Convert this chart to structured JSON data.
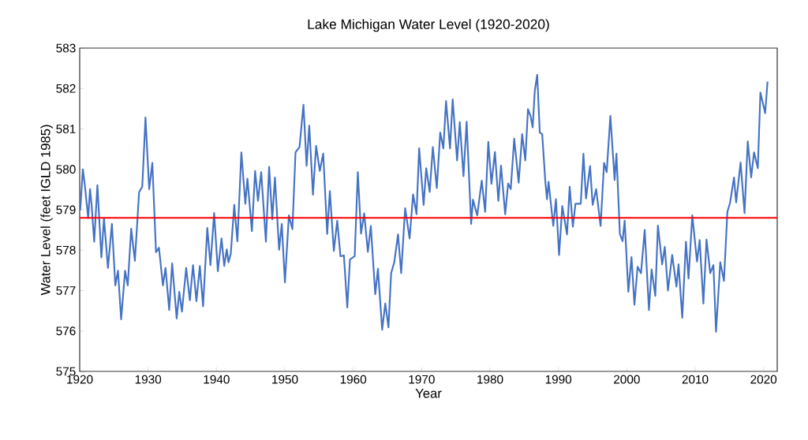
{
  "chart_data": {
    "type": "line",
    "title": "Lake Michigan Water Level (1920-2020)",
    "xlabel": "Year",
    "ylabel": "Water Level (feet IGLD 1985)",
    "xlim": [
      1920,
      2022
    ],
    "ylim": [
      575,
      583
    ],
    "xticks": [
      1920,
      1930,
      1940,
      1950,
      1960,
      1970,
      1980,
      1990,
      2000,
      2010,
      2020
    ],
    "yticks": [
      575,
      576,
      577,
      578,
      579,
      580,
      581,
      582,
      583
    ],
    "marker": "none",
    "line_style": "solid",
    "ref_lines": [
      {
        "axis": "y",
        "value": 578.8,
        "color": "#ff0000"
      }
    ],
    "series": [
      {
        "color": "#4472c4",
        "x": [
          1920.08,
          1920.46,
          1920.73,
          1921.24,
          1921.51,
          1921.74,
          1922.12,
          1922.59,
          1923.17,
          1923.55,
          1924.13,
          1924.71,
          1925.21,
          1925.6,
          1926.06,
          1926.64,
          1927.03,
          1927.53,
          1928.07,
          1928.69,
          1929.15,
          1929.62,
          1930.16,
          1930.62,
          1931.16,
          1931.59,
          1932.17,
          1932.55,
          1933.09,
          1933.52,
          1934.18,
          1934.56,
          1934.95,
          1935.57,
          1936.11,
          1936.57,
          1937.07,
          1937.57,
          1938.04,
          1938.66,
          1939.12,
          1939.66,
          1940.2,
          1940.74,
          1941.13,
          1941.51,
          1941.75,
          1942.09,
          1942.6,
          1943.06,
          1943.64,
          1944.22,
          1944.53,
          1945.18,
          1945.65,
          1946.07,
          1946.54,
          1947.23,
          1947.7,
          1948.16,
          1948.55,
          1949.16,
          1949.55,
          1950.01,
          1950.59,
          1951.1,
          1951.56,
          1952.14,
          1952.72,
          1953.18,
          1953.57,
          1954.11,
          1954.57,
          1955.11,
          1955.61,
          1956.19,
          1956.58,
          1957.16,
          1957.66,
          1958.13,
          1958.63,
          1959.13,
          1959.52,
          1960.21,
          1960.67,
          1961.14,
          1961.6,
          1962.14,
          1962.57,
          1963.22,
          1963.61,
          1964.23,
          1964.69,
          1965.15,
          1965.54,
          1966.0,
          1966.55,
          1967.01,
          1967.59,
          1968.24,
          1968.75,
          1969.25,
          1969.64,
          1970.29,
          1970.67,
          1971.18,
          1971.64,
          1972.22,
          1972.72,
          1973.18,
          1973.57,
          1974.15,
          1974.54,
          1975.19,
          1975.58,
          1976.12,
          1976.58,
          1977.24,
          1977.51,
          1978.13,
          1978.79,
          1979.29,
          1979.75,
          1980.21,
          1980.72,
          1981.22,
          1981.61,
          1982.22,
          1982.65,
          1983.03,
          1983.54,
          1984.19,
          1984.7,
          1985.16,
          1985.55,
          1985.93,
          1986.24,
          1986.55,
          1986.9,
          1987.28,
          1987.63,
          1988.09,
          1988.33,
          1988.56,
          1989.25,
          1989.64,
          1990.1,
          1990.57,
          1991.26,
          1991.65,
          1992.11,
          1992.5,
          1993.27,
          1993.66,
          1994.04,
          1994.63,
          1995.01,
          1995.52,
          1996.17,
          1996.68,
          1997.06,
          1997.6,
          1998.22,
          1998.49,
          1998.99,
          1999.38,
          1999.69,
          2000.23,
          2000.69,
          2001.12,
          2001.58,
          2002.08,
          2002.62,
          2003.24,
          2003.63,
          2004.17,
          2004.55,
          2005.17,
          2005.56,
          2006.02,
          2006.64,
          2007.26,
          2007.57,
          2008.11,
          2008.65,
          2009.03,
          2009.58,
          2010.27,
          2010.66,
          2011.2,
          2011.66,
          2012.2,
          2012.67,
          2013.05,
          2013.67,
          2014.21,
          2014.71,
          2015.1,
          2015.68,
          2015.99,
          2016.64,
          2017.22,
          2017.69,
          2018.19,
          2018.61,
          2019.16,
          2019.54,
          2020.24,
          2020.58
        ],
        "values": [
          578.99,
          580.0,
          579.64,
          578.79,
          579.51,
          579.12,
          578.21,
          579.61,
          577.82,
          578.79,
          577.56,
          578.65,
          577.13,
          577.49,
          576.29,
          577.49,
          577.13,
          578.53,
          577.74,
          579.44,
          579.57,
          581.28,
          579.51,
          580.16,
          577.95,
          578.06,
          577.13,
          577.56,
          576.52,
          577.67,
          576.31,
          576.97,
          576.48,
          577.56,
          576.76,
          577.63,
          576.74,
          577.61,
          576.61,
          578.55,
          577.63,
          578.92,
          577.48,
          578.29,
          577.61,
          578.02,
          577.7,
          577.91,
          579.12,
          578.22,
          580.42,
          579.15,
          579.77,
          578.47,
          579.96,
          579.22,
          579.93,
          578.21,
          580.06,
          578.76,
          579.8,
          578.01,
          578.65,
          577.2,
          578.86,
          578.52,
          580.42,
          580.55,
          581.6,
          580.09,
          581.08,
          579.37,
          580.58,
          579.96,
          580.39,
          578.4,
          579.46,
          577.98,
          578.73,
          577.85,
          577.87,
          576.58,
          577.77,
          577.85,
          579.93,
          578.41,
          578.91,
          577.96,
          578.6,
          576.91,
          577.54,
          576.03,
          576.68,
          576.09,
          577.43,
          577.7,
          578.39,
          577.43,
          579.04,
          578.29,
          579.38,
          578.89,
          580.52,
          579.12,
          580.03,
          579.44,
          580.55,
          579.54,
          580.91,
          580.52,
          581.69,
          580.52,
          581.73,
          580.22,
          581.17,
          579.83,
          581.18,
          578.65,
          579.25,
          578.86,
          579.72,
          578.95,
          580.68,
          579.64,
          580.43,
          579.22,
          580.09,
          578.89,
          579.65,
          579.51,
          580.76,
          579.67,
          580.87,
          580.22,
          581.49,
          581.32,
          581.04,
          581.95,
          582.34,
          580.91,
          580.87,
          579.7,
          579.26,
          579.69,
          578.6,
          579.26,
          577.88,
          579.09,
          578.39,
          579.57,
          578.58,
          579.15,
          579.15,
          580.39,
          579.28,
          580.08,
          579.12,
          579.51,
          578.6,
          580.16,
          579.93,
          581.32,
          579.74,
          580.39,
          578.4,
          578.22,
          578.73,
          576.97,
          577.83,
          576.65,
          577.59,
          577.43,
          578.5,
          576.52,
          577.52,
          576.87,
          578.61,
          577.65,
          578.08,
          577.0,
          577.88,
          577.1,
          577.65,
          576.33,
          578.21,
          577.3,
          578.86,
          577.72,
          578.25,
          576.68,
          578.26,
          577.43,
          577.63,
          575.98,
          577.7,
          577.24,
          578.95,
          579.17,
          579.8,
          579.18,
          580.17,
          578.92,
          580.69,
          579.8,
          580.42,
          580.03,
          581.9,
          581.39,
          582.17
        ]
      }
    ]
  }
}
